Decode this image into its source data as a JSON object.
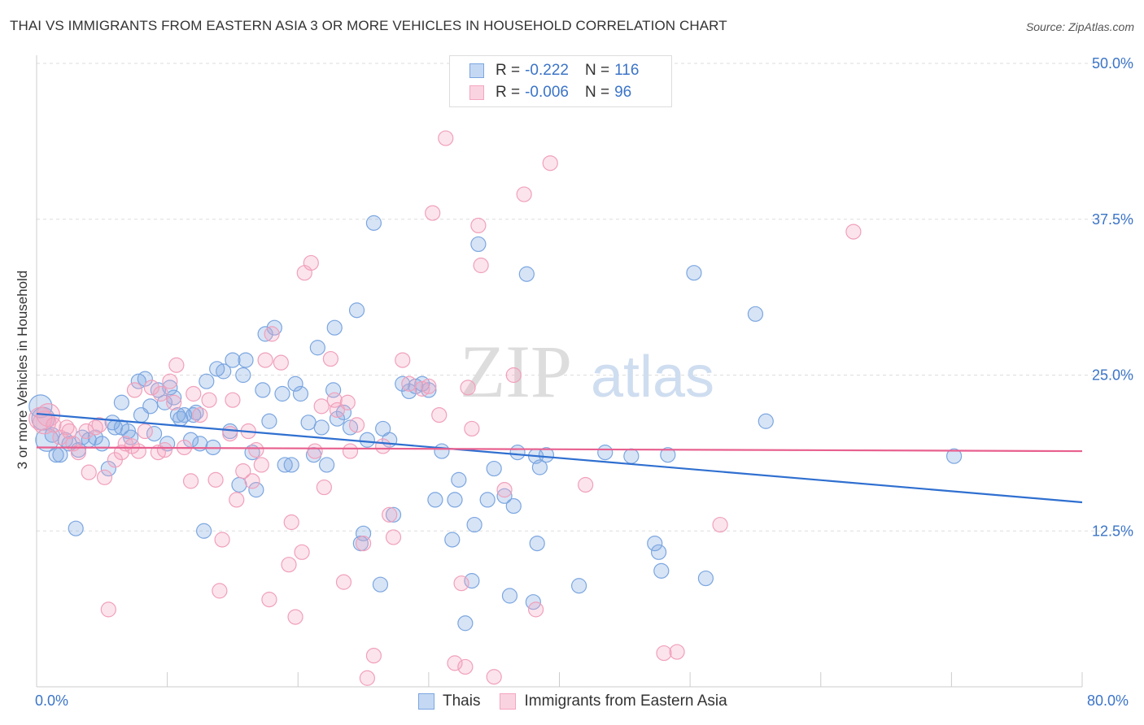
{
  "title": "THAI VS IMMIGRANTS FROM EASTERN ASIA 3 OR MORE VEHICLES IN HOUSEHOLD CORRELATION CHART",
  "source": "Source: ZipAtlas.com",
  "watermark": {
    "zip": "ZIP",
    "atlas": "atlas"
  },
  "legend_top": [
    {
      "r_label": "R =",
      "r_value": "-0.222",
      "n_label": "N =",
      "n_value": "116"
    },
    {
      "r_label": "R =",
      "r_value": "-0.006",
      "n_label": "N =",
      "n_value": "96"
    }
  ],
  "chart_data": {
    "type": "scatter",
    "title": "THAI VS IMMIGRANTS FROM EASTERN ASIA 3 OR MORE VEHICLES IN HOUSEHOLD CORRELATION CHART",
    "xlabel": "",
    "ylabel": "3 or more Vehicles in Household",
    "xlim": [
      0,
      80
    ],
    "ylim": [
      0,
      50
    ],
    "x_tick_labels": [
      "0.0%",
      "80.0%"
    ],
    "y_ticks": [
      12.5,
      25.0,
      37.5,
      50.0
    ],
    "y_tick_labels": [
      "12.5%",
      "25.0%",
      "37.5%",
      "50.0%"
    ],
    "grid": true,
    "legend_position": "bottom",
    "series": [
      {
        "name": "Thais",
        "color": "#7ba6e0",
        "line_color": "#2f6fd0",
        "trend": {
          "x": [
            0,
            80
          ],
          "y": [
            21.9,
            14.8
          ]
        },
        "points": [
          [
            0.3,
            22.5
          ],
          [
            0.5,
            21.5
          ],
          [
            0.8,
            19.8
          ],
          [
            1.2,
            20.2
          ],
          [
            1.5,
            18.6
          ],
          [
            1.8,
            18.6
          ],
          [
            2.2,
            19.8
          ],
          [
            2.5,
            19.5
          ],
          [
            3.0,
            12.7
          ],
          [
            3.2,
            19.0
          ],
          [
            3.5,
            20.0
          ],
          [
            4.0,
            19.8
          ],
          [
            4.5,
            20.0
          ],
          [
            5.0,
            19.5
          ],
          [
            5.5,
            17.5
          ],
          [
            5.8,
            21.2
          ],
          [
            6.0,
            20.8
          ],
          [
            6.5,
            22.8
          ],
          [
            7.0,
            20.5
          ],
          [
            7.2,
            20.0
          ],
          [
            7.8,
            24.5
          ],
          [
            8.0,
            21.8
          ],
          [
            8.3,
            24.7
          ],
          [
            8.7,
            22.5
          ],
          [
            9.0,
            20.3
          ],
          [
            9.3,
            23.8
          ],
          [
            9.8,
            22.8
          ],
          [
            10.2,
            24.0
          ],
          [
            10.5,
            23.2
          ],
          [
            10.8,
            21.8
          ],
          [
            11.0,
            21.5
          ],
          [
            11.3,
            21.8
          ],
          [
            11.8,
            19.8
          ],
          [
            12.0,
            21.8
          ],
          [
            12.2,
            22.0
          ],
          [
            12.8,
            12.5
          ],
          [
            13.0,
            24.5
          ],
          [
            13.5,
            19.2
          ],
          [
            13.8,
            25.5
          ],
          [
            14.3,
            25.3
          ],
          [
            14.8,
            20.5
          ],
          [
            15.0,
            26.2
          ],
          [
            15.5,
            16.2
          ],
          [
            15.8,
            25.0
          ],
          [
            16.0,
            26.2
          ],
          [
            16.5,
            18.8
          ],
          [
            16.8,
            15.8
          ],
          [
            17.3,
            23.8
          ],
          [
            17.5,
            28.3
          ],
          [
            17.8,
            21.3
          ],
          [
            18.2,
            28.8
          ],
          [
            18.8,
            23.5
          ],
          [
            19.0,
            17.8
          ],
          [
            19.5,
            17.8
          ],
          [
            19.8,
            24.3
          ],
          [
            20.2,
            23.5
          ],
          [
            20.8,
            21.2
          ],
          [
            21.2,
            18.6
          ],
          [
            21.5,
            27.2
          ],
          [
            21.8,
            20.8
          ],
          [
            22.2,
            17.8
          ],
          [
            22.7,
            23.8
          ],
          [
            22.8,
            28.8
          ],
          [
            23.0,
            21.5
          ],
          [
            23.5,
            22.0
          ],
          [
            24.0,
            20.8
          ],
          [
            24.5,
            30.2
          ],
          [
            24.8,
            11.5
          ],
          [
            25.0,
            12.3
          ],
          [
            25.3,
            19.8
          ],
          [
            25.8,
            37.2
          ],
          [
            26.3,
            8.2
          ],
          [
            26.5,
            20.7
          ],
          [
            27.0,
            19.8
          ],
          [
            27.3,
            13.8
          ],
          [
            28.0,
            24.3
          ],
          [
            28.5,
            23.7
          ],
          [
            29.0,
            24.1
          ],
          [
            29.5,
            24.3
          ],
          [
            30.0,
            23.8
          ],
          [
            31.0,
            18.9
          ],
          [
            30.5,
            15.0
          ],
          [
            31.8,
            11.8
          ],
          [
            32.0,
            15.0
          ],
          [
            32.3,
            16.6
          ],
          [
            32.8,
            5.1
          ],
          [
            33.3,
            8.5
          ],
          [
            33.5,
            13.0
          ],
          [
            33.8,
            35.5
          ],
          [
            34.5,
            15.0
          ],
          [
            35.0,
            17.5
          ],
          [
            35.8,
            15.3
          ],
          [
            36.2,
            7.3
          ],
          [
            36.5,
            14.5
          ],
          [
            36.8,
            18.8
          ],
          [
            37.5,
            33.1
          ],
          [
            38.0,
            6.8
          ],
          [
            38.3,
            11.5
          ],
          [
            38.5,
            17.6
          ],
          [
            38.2,
            18.5
          ],
          [
            39.0,
            18.6
          ],
          [
            41.5,
            8.1
          ],
          [
            43.5,
            18.8
          ],
          [
            45.5,
            18.5
          ],
          [
            47.3,
            11.5
          ],
          [
            47.6,
            10.8
          ],
          [
            47.8,
            9.3
          ],
          [
            48.3,
            18.6
          ],
          [
            50.3,
            33.2
          ],
          [
            51.2,
            8.7
          ],
          [
            55.0,
            29.9
          ],
          [
            55.8,
            21.3
          ],
          [
            70.2,
            18.5
          ],
          [
            6.5,
            20.8
          ],
          [
            10.0,
            19.5
          ],
          [
            12.5,
            19.5
          ]
        ]
      },
      {
        "name": "Immigrants from Eastern Asia",
        "color": "#f4a6c0",
        "line_color": "#e8608f",
        "trend": {
          "x": [
            0,
            80
          ],
          "y": [
            19.2,
            18.9
          ]
        },
        "points": [
          [
            0.3,
            21.5
          ],
          [
            0.6,
            21.2
          ],
          [
            0.9,
            21.8
          ],
          [
            1.3,
            21.0
          ],
          [
            1.8,
            20.0
          ],
          [
            2.3,
            20.8
          ],
          [
            2.5,
            20.5
          ],
          [
            2.8,
            19.5
          ],
          [
            3.2,
            18.8
          ],
          [
            3.8,
            20.5
          ],
          [
            4.0,
            17.2
          ],
          [
            4.5,
            20.8
          ],
          [
            4.8,
            21.0
          ],
          [
            5.2,
            16.8
          ],
          [
            5.5,
            6.2
          ],
          [
            6.0,
            18.2
          ],
          [
            6.5,
            18.8
          ],
          [
            6.8,
            19.5
          ],
          [
            7.3,
            19.3
          ],
          [
            7.5,
            23.8
          ],
          [
            7.8,
            18.9
          ],
          [
            8.3,
            20.5
          ],
          [
            8.8,
            24.0
          ],
          [
            9.3,
            18.8
          ],
          [
            9.5,
            23.5
          ],
          [
            9.8,
            19.0
          ],
          [
            10.2,
            24.5
          ],
          [
            10.5,
            22.8
          ],
          [
            10.7,
            25.8
          ],
          [
            11.3,
            19.2
          ],
          [
            11.8,
            16.5
          ],
          [
            12.0,
            23.5
          ],
          [
            12.5,
            21.8
          ],
          [
            13.2,
            23.0
          ],
          [
            13.7,
            16.6
          ],
          [
            14.0,
            7.7
          ],
          [
            14.2,
            11.8
          ],
          [
            14.8,
            20.3
          ],
          [
            15.0,
            23.0
          ],
          [
            15.3,
            15.0
          ],
          [
            15.8,
            17.3
          ],
          [
            16.2,
            20.5
          ],
          [
            16.5,
            16.5
          ],
          [
            16.8,
            19.0
          ],
          [
            17.2,
            17.8
          ],
          [
            17.5,
            26.2
          ],
          [
            17.8,
            7.0
          ],
          [
            18.0,
            28.3
          ],
          [
            18.7,
            26.0
          ],
          [
            19.3,
            9.8
          ],
          [
            19.5,
            13.2
          ],
          [
            19.8,
            5.6
          ],
          [
            20.3,
            10.8
          ],
          [
            20.5,
            33.2
          ],
          [
            21.0,
            34.0
          ],
          [
            21.3,
            18.9
          ],
          [
            21.8,
            22.5
          ],
          [
            22.0,
            16.0
          ],
          [
            22.5,
            26.3
          ],
          [
            22.8,
            23.0
          ],
          [
            23.0,
            22.2
          ],
          [
            23.5,
            8.4
          ],
          [
            23.8,
            22.8
          ],
          [
            24.0,
            18.9
          ],
          [
            24.5,
            21.0
          ],
          [
            25.0,
            11.5
          ],
          [
            25.3,
            0.7
          ],
          [
            25.8,
            2.5
          ],
          [
            26.5,
            19.3
          ],
          [
            27.0,
            13.8
          ],
          [
            27.3,
            12.0
          ],
          [
            28.0,
            26.2
          ],
          [
            28.5,
            24.3
          ],
          [
            29.5,
            23.9
          ],
          [
            30.0,
            24.1
          ],
          [
            30.3,
            38.0
          ],
          [
            30.8,
            21.8
          ],
          [
            31.3,
            44.0
          ],
          [
            32.0,
            1.9
          ],
          [
            32.5,
            8.3
          ],
          [
            32.8,
            1.6
          ],
          [
            33.0,
            24.0
          ],
          [
            33.3,
            20.7
          ],
          [
            33.8,
            37.0
          ],
          [
            34.0,
            33.8
          ],
          [
            35.0,
            0.8
          ],
          [
            35.8,
            15.8
          ],
          [
            36.5,
            25.0
          ],
          [
            37.3,
            39.5
          ],
          [
            38.2,
            6.2
          ],
          [
            39.3,
            42.0
          ],
          [
            42.0,
            16.2
          ],
          [
            48.0,
            2.7
          ],
          [
            49.0,
            2.8
          ],
          [
            52.3,
            13.0
          ],
          [
            62.5,
            36.5
          ]
        ]
      }
    ]
  },
  "legend_bottom": [
    {
      "label": "Thais",
      "color": "#7ba6e0"
    },
    {
      "label": "Immigrants from Eastern Asia",
      "color": "#f4a6c0"
    }
  ]
}
